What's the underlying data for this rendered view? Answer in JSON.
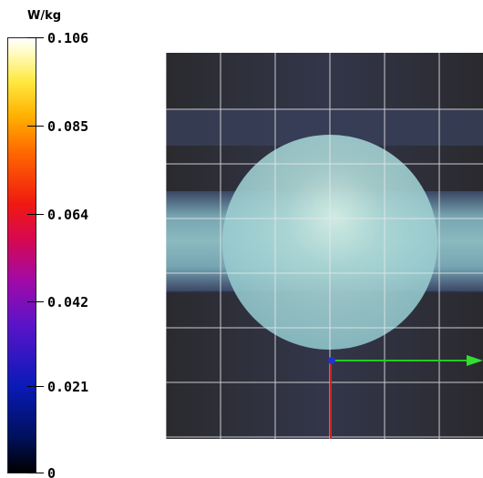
{
  "colorbar": {
    "unit": "W/kg",
    "ticks": [
      {
        "label": "0.106",
        "value": 0.106
      },
      {
        "label": "0.085",
        "value": 0.085
      },
      {
        "label": "0.064",
        "value": 0.064
      },
      {
        "label": "0.042",
        "value": 0.042
      },
      {
        "label": "0.021",
        "value": 0.021
      },
      {
        "label": "0",
        "value": 0
      }
    ],
    "min": 0,
    "max": 0.106
  },
  "viewport": {
    "background_color": "#262626",
    "grid_color": "#ffffff",
    "band_color": "#8fc4cc",
    "sphere_color": "#a8d6d6",
    "x_axis_color": "#22cc22",
    "y_axis_color": "#cc2222",
    "origin_color": "#2233cc"
  }
}
